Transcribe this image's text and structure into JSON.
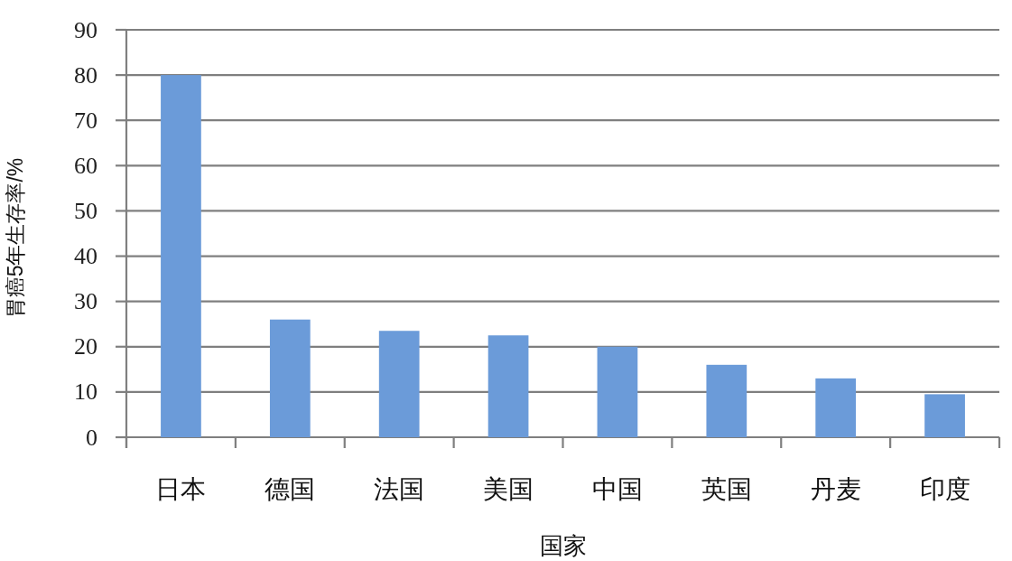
{
  "chart_data": {
    "type": "bar",
    "categories": [
      "日本",
      "德国",
      "法国",
      "美国",
      "中国",
      "英国",
      "丹麦",
      "印度"
    ],
    "values": [
      80,
      26,
      23.5,
      22.5,
      20,
      16,
      13,
      9.5
    ],
    "color": "#6b9bd9",
    "xlabel": "国家",
    "ylabel": "胃癌5年生存率/%",
    "ylim": [
      0,
      90
    ],
    "yticks": [
      0,
      10,
      20,
      30,
      40,
      50,
      60,
      70,
      80,
      90
    ],
    "grid": "y"
  }
}
